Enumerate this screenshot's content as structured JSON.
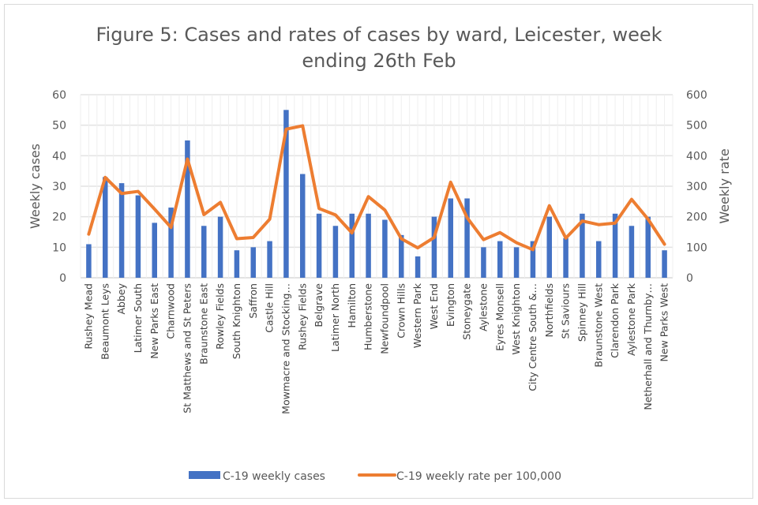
{
  "chart_data": {
    "type": "bar",
    "combo": "bar+line (secondary axis)",
    "title_lines": [
      "Figure 5: Cases and rates of cases by ward, Leicester, week",
      "ending 26th Feb"
    ],
    "title": "Figure 5: Cases and rates of cases by ward, Leicester, week ending 26th Feb",
    "xlabel": "",
    "ylabel": "Weekly cases",
    "y2label": "Weekly rate",
    "ylim": [
      0,
      60
    ],
    "y2lim": [
      0,
      600
    ],
    "yticks": [
      "0",
      "10",
      "20",
      "30",
      "40",
      "50",
      "60"
    ],
    "y2ticks": [
      "0",
      "100",
      "200",
      "300",
      "400",
      "500",
      "600"
    ],
    "grid": true,
    "legend_position": "bottom",
    "categories": [
      "Rushey Mead",
      "Beaumont Leys",
      "Abbey",
      "Latimer South",
      "New Parks East",
      "Charnwood",
      "St Matthews and St Peters",
      "Braunstone East",
      "Rowley Fields",
      "South Knighton",
      "Saffron",
      "Castle Hill",
      "Mowmacre and Stocking…",
      "Rushey Fields",
      "Belgrave",
      "Latimer North",
      "Hamilton",
      "Humberstone",
      "Newfoundpool",
      "Crown Hills",
      "Western Park",
      "West End",
      "Evington",
      "Stoneygate",
      "Aylestone",
      "Eyres Monsell",
      "West Knighton",
      "City Centre South &…",
      "Northfields",
      "St Saviours",
      "Spinney Hill",
      "Braunstone West",
      "Clarendon Park",
      "Aylestone Park",
      "Netherhall and Thurnby…",
      "New Parks West"
    ],
    "series": [
      {
        "name": "C-19 weekly cases",
        "type": "bar",
        "axis": "left",
        "color": "#4472c4",
        "values": [
          11,
          33,
          31,
          27,
          18,
          23,
          45,
          17,
          20,
          9,
          10,
          12,
          55,
          34,
          21,
          17,
          21,
          21,
          19,
          14,
          7,
          20,
          26,
          26,
          10,
          12,
          10,
          12,
          20,
          13,
          21,
          12,
          21,
          17,
          20,
          9
        ]
      },
      {
        "name": "C-19 weekly rate per 100,000",
        "type": "line",
        "axis": "right",
        "color": "#ed7d31",
        "values": [
          143,
          329,
          276,
          283,
          225,
          165,
          389,
          207,
          247,
          128,
          132,
          192,
          487,
          498,
          227,
          206,
          147,
          266,
          222,
          128,
          98,
          132,
          313,
          197,
          125,
          148,
          115,
          92,
          236,
          130,
          186,
          174,
          179,
          257,
          192,
          110
        ]
      }
    ]
  }
}
